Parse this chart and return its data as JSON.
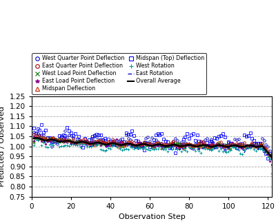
{
  "n_steps": 122,
  "ylim": [
    0.75,
    1.25
  ],
  "xlim": [
    0,
    122
  ],
  "yticks": [
    0.75,
    0.8,
    0.85,
    0.9,
    0.95,
    1.0,
    1.05,
    1.1,
    1.15,
    1.2,
    1.25
  ],
  "xticks": [
    0,
    20,
    40,
    60,
    80,
    100,
    120
  ],
  "xlabel": "Observation Step",
  "ylabel": "Predicted / Observed",
  "series_colors": {
    "west_qp": "#0000bb",
    "west_lp": "#007700",
    "midspan": "#cc2200",
    "west_rot": "#009999",
    "east_qp": "#aa0000",
    "east_lp": "#880088",
    "midspan_top": "#0000ff",
    "east_rot": "#0000cc",
    "overall": "#000000"
  }
}
